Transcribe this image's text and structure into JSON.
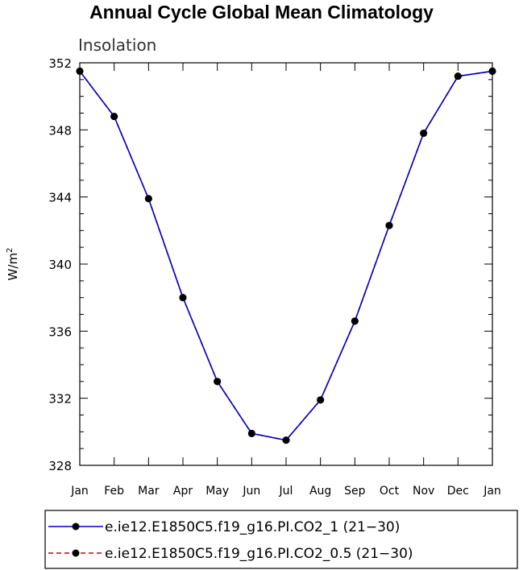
{
  "chart_data": {
    "type": "line",
    "title": "Annual Cycle Global Mean Climatology",
    "subtitle": "Insolation",
    "xlabel": "",
    "ylabel": "W/m",
    "ylabel_superscript": "2",
    "categories": [
      "Jan",
      "Feb",
      "Mar",
      "Apr",
      "May",
      "Jun",
      "Jul",
      "Aug",
      "Sep",
      "Oct",
      "Nov",
      "Dec",
      "Jan"
    ],
    "ylim": [
      328,
      352
    ],
    "yticks": [
      328,
      332,
      336,
      340,
      344,
      348,
      352
    ],
    "grid": false,
    "legend_placement": "bottom",
    "series": [
      {
        "name": "e.ie12.E1850C5.f19_g16.PI.CO2_1 (21−30)",
        "color": "#0000cc",
        "line_style": "solid",
        "values": [
          351.5,
          348.8,
          343.9,
          338.0,
          333.0,
          329.9,
          329.5,
          331.9,
          336.6,
          342.3,
          347.8,
          351.2,
          351.5
        ]
      },
      {
        "name": "e.ie12.E1850C5.f19_g16.PI.CO2_0.5 (21−30)",
        "color": "#cc0000",
        "line_style": "dashed",
        "values": [
          351.5,
          348.8,
          343.9,
          338.0,
          333.0,
          329.9,
          329.5,
          331.9,
          336.6,
          342.3,
          347.8,
          351.2,
          351.5
        ]
      }
    ]
  }
}
